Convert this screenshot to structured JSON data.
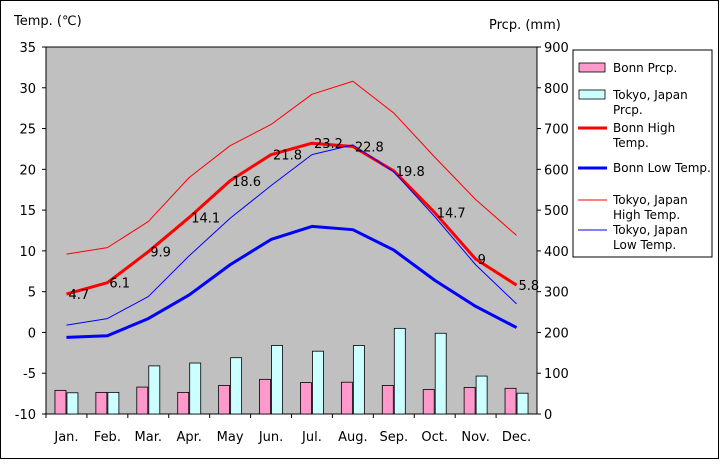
{
  "chart_data": {
    "type": "bar+line",
    "categories": [
      "Jan.",
      "Feb.",
      "Mar.",
      "Apr.",
      "May",
      "Jun.",
      "Jul.",
      "Aug.",
      "Sep.",
      "Oct.",
      "Nov.",
      "Dec."
    ],
    "y_left": {
      "label": "Temp. (℃)",
      "ticks": [
        "35",
        "30",
        "25",
        "20",
        "15",
        "10",
        "5",
        "0",
        "-5",
        "-10"
      ],
      "range": [
        -10,
        35
      ]
    },
    "y_right": {
      "label": "Prcp. (mm)",
      "ticks": [
        "900",
        "800",
        "700",
        "600",
        "500",
        "400",
        "300",
        "200",
        "100",
        "0"
      ],
      "range": [
        0,
        900
      ]
    },
    "grid": false,
    "legend_position": "right",
    "series": [
      {
        "name": "Bonn Prcp.",
        "kind": "bar",
        "axis": "right",
        "color": "#ff99cc",
        "values": [
          58,
          53,
          66,
          53,
          70,
          85,
          77,
          78,
          70,
          60,
          65,
          63
        ]
      },
      {
        "name": "Tokyo, Japan Prcp.",
        "kind": "bar",
        "axis": "right",
        "color": "#ccffff",
        "values": [
          52,
          53,
          118,
          125,
          138,
          168,
          154,
          168,
          210,
          198,
          93,
          51
        ]
      },
      {
        "name": "Bonn High Temp.",
        "kind": "line",
        "axis": "left",
        "color": "#ff0000",
        "width": 3,
        "values": [
          4.7,
          6.1,
          9.9,
          14.1,
          18.6,
          21.8,
          23.2,
          22.8,
          19.8,
          14.7,
          9,
          5.8
        ]
      },
      {
        "name": "Bonn Low Temp.",
        "kind": "line",
        "axis": "left",
        "color": "#0000ff",
        "width": 3,
        "values": [
          -0.6,
          -0.4,
          1.7,
          4.6,
          8.3,
          11.4,
          13.0,
          12.6,
          10.1,
          6.4,
          3.2,
          0.6
        ]
      },
      {
        "name": "Tokyo, Japan High Temp.",
        "kind": "line",
        "axis": "left",
        "color": "#ff0000",
        "width": 1,
        "values": [
          9.6,
          10.4,
          13.6,
          19.0,
          22.9,
          25.5,
          29.2,
          30.8,
          26.9,
          21.5,
          16.3,
          11.9
        ]
      },
      {
        "name": "Tokyo, Japan Low Temp.",
        "kind": "line",
        "axis": "left",
        "color": "#0000ff",
        "width": 1,
        "values": [
          0.9,
          1.7,
          4.4,
          9.4,
          14.0,
          18.0,
          21.8,
          23.0,
          19.7,
          14.2,
          8.3,
          3.5
        ]
      }
    ],
    "data_labels": {
      "series": "Bonn High Temp.",
      "values": [
        "4.7",
        "6.1",
        "9.9",
        "14.1",
        "18.6",
        "21.8",
        "23.2",
        "22.8",
        "19.8",
        "14.7",
        "9",
        "5.8"
      ]
    },
    "legend": [
      {
        "label": "Bonn Prcp.",
        "lines": [
          "Bonn Prcp."
        ],
        "kind": "bar",
        "color": "#ff99cc"
      },
      {
        "label": "Tokyo, Japan Prcp.",
        "lines": [
          "Tokyo, Japan",
          "Prcp."
        ],
        "kind": "bar",
        "color": "#ccffff"
      },
      {
        "label": "Bonn High Temp.",
        "lines": [
          "Bonn High",
          "Temp."
        ],
        "kind": "line",
        "color": "#ff0000",
        "width": 3
      },
      {
        "label": "Bonn Low Temp.",
        "lines": [
          "Bonn Low Temp."
        ],
        "kind": "line",
        "color": "#0000ff",
        "width": 3
      },
      {
        "label": "Tokyo, Japan High Temp.",
        "lines": [
          "Tokyo, Japan",
          "High Temp."
        ],
        "kind": "line",
        "color": "#ff0000",
        "width": 1
      },
      {
        "label": "Tokyo, Japan Low Temp.",
        "lines": [
          "Tokyo, Japan",
          "Low Temp."
        ],
        "kind": "line",
        "color": "#0000ff",
        "width": 1
      }
    ],
    "colors": {
      "plot_background": "#c0c0c0",
      "frame": "#000000"
    }
  }
}
